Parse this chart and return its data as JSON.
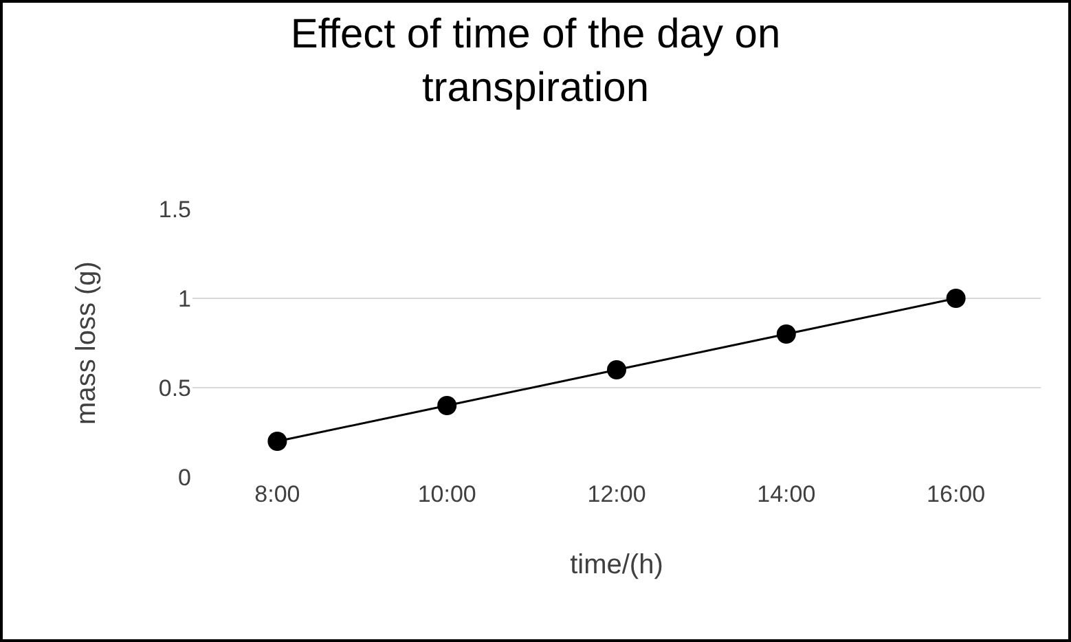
{
  "chart_data": {
    "type": "line",
    "title": "Effect of time of the day on transpiration",
    "xlabel": "time/(h)",
    "ylabel": "mass loss (g)",
    "categories": [
      "8:00",
      "10:00",
      "12:00",
      "14:00",
      "16:00"
    ],
    "series": [
      {
        "color": "#000000",
        "values": [
          0.2,
          0.4,
          0.6,
          0.8,
          1
        ]
      }
    ],
    "ylim": [
      0,
      1.5
    ],
    "yticks": [
      0,
      0.5,
      1,
      1.5
    ],
    "grid": "y",
    "marker": "circle",
    "line_style": "solid"
  }
}
